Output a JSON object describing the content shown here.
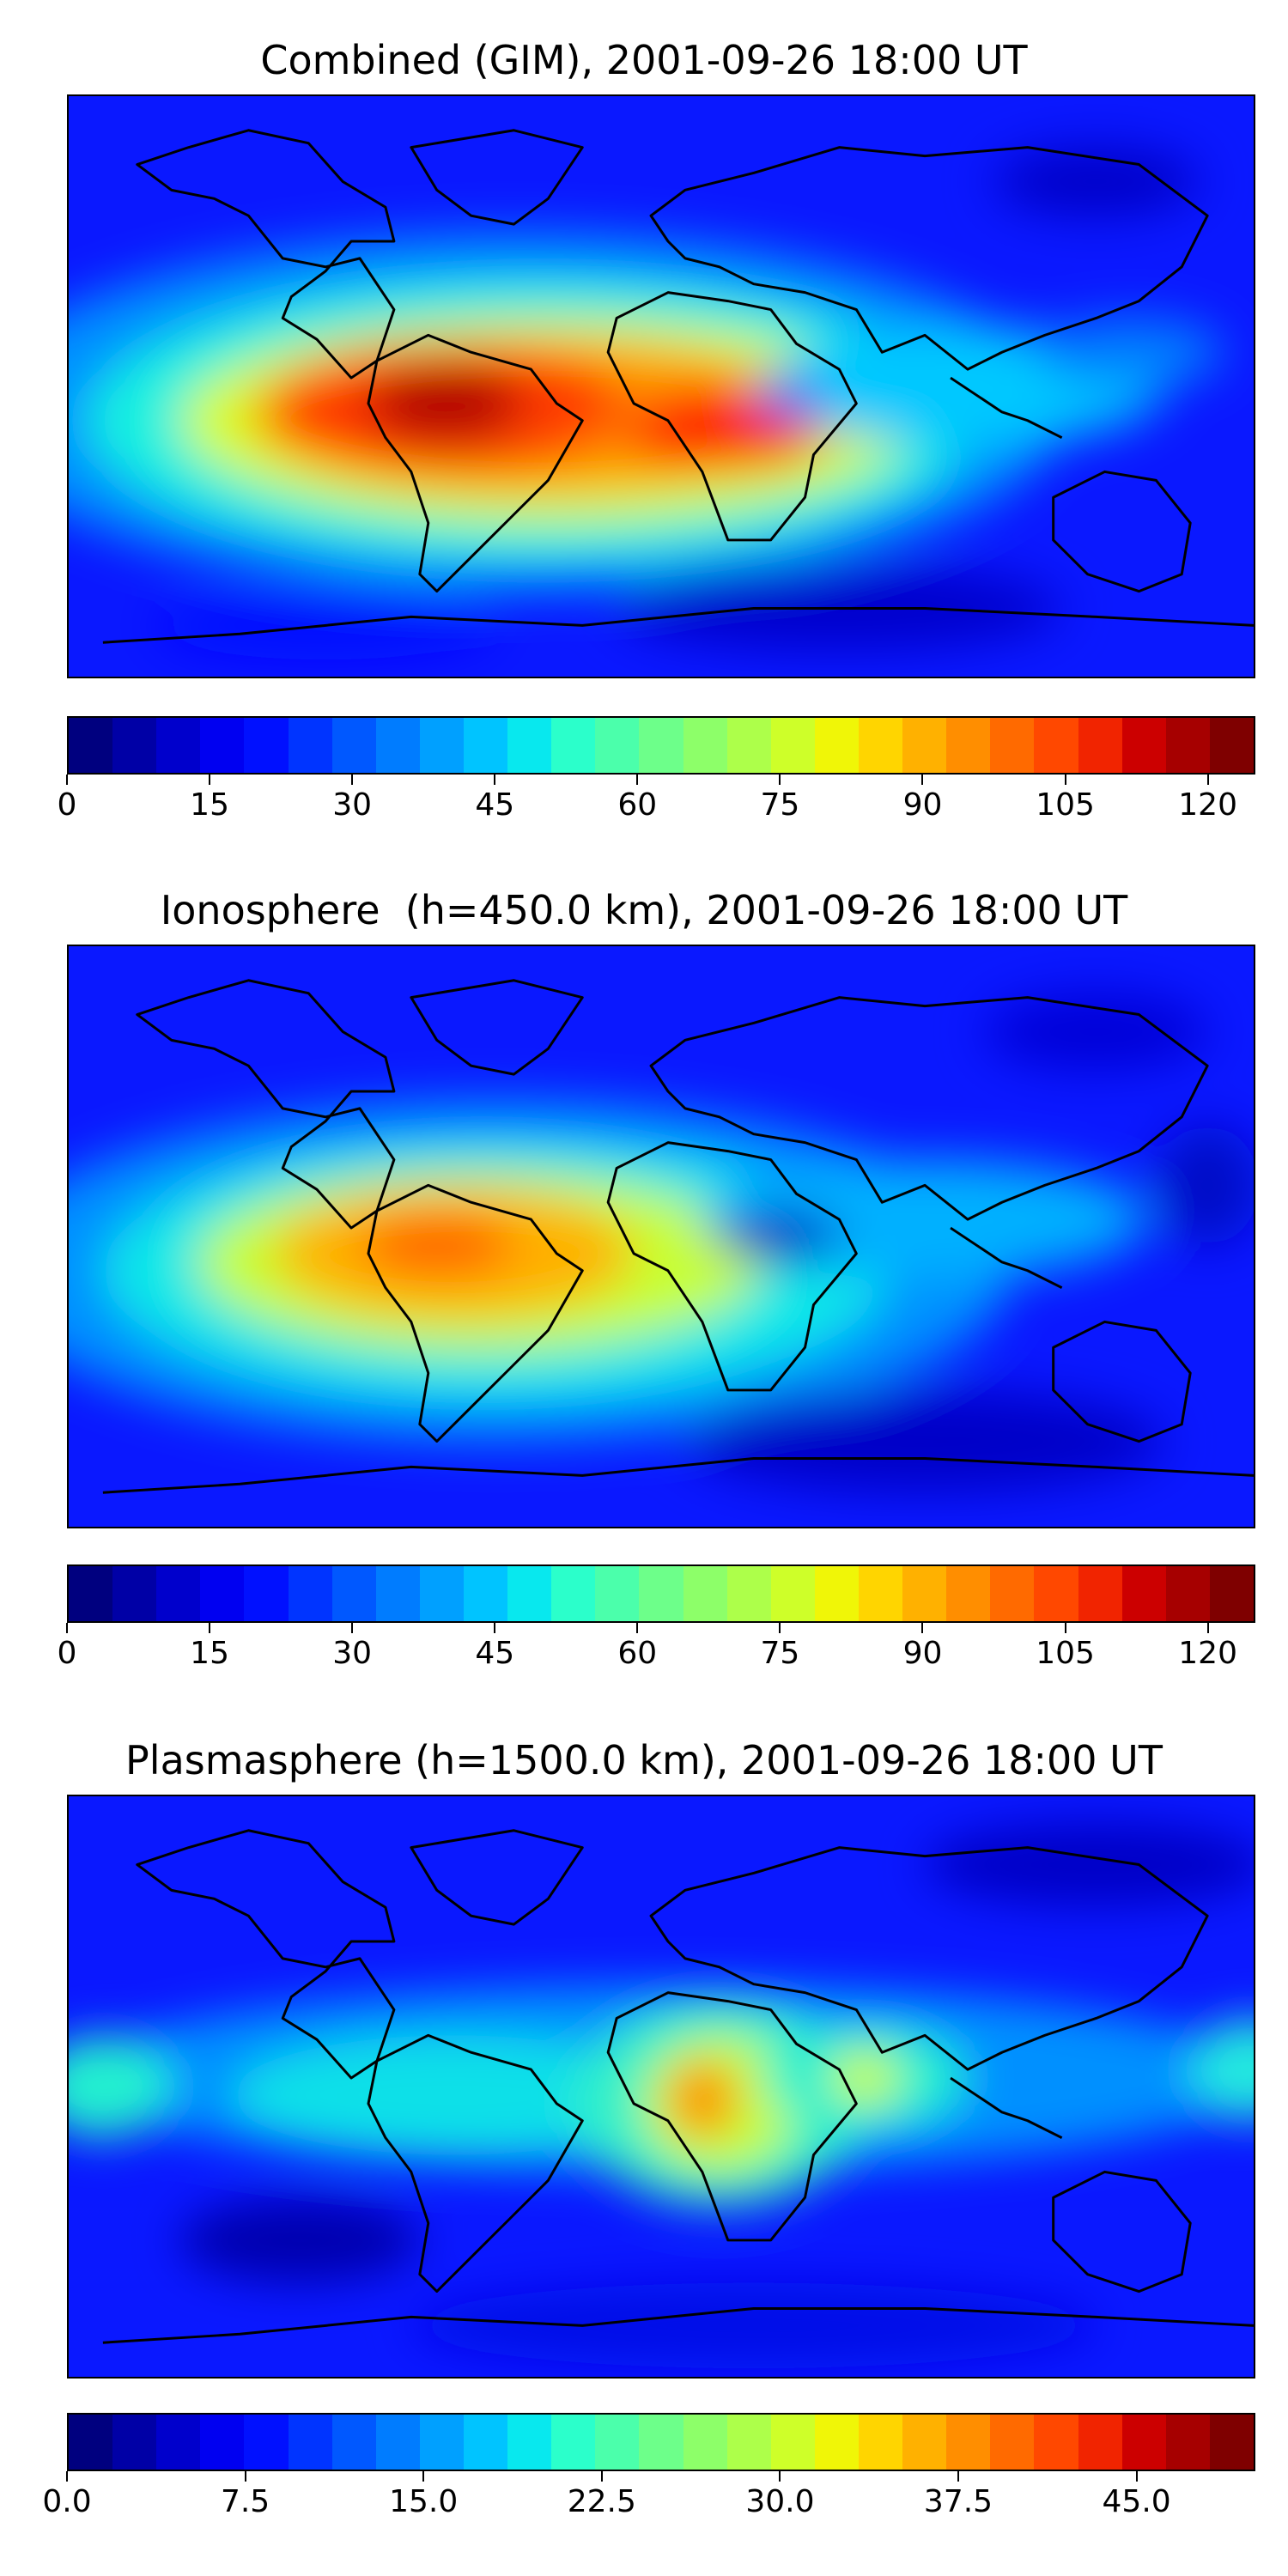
{
  "panels": [
    {
      "title": "Combined (GIM), 2001-09-26 18:00 UT",
      "colorbar": {
        "min": 0,
        "max": 125,
        "ticks": [
          0,
          15,
          30,
          45,
          60,
          75,
          90,
          105,
          120
        ],
        "tick_labels": [
          "0",
          "15",
          "30",
          "45",
          "60",
          "75",
          "90",
          "105",
          "120"
        ]
      }
    },
    {
      "title": "Ionosphere  (h=450.0 km), 2001-09-26 18:00 UT",
      "colorbar": {
        "min": 0,
        "max": 125,
        "ticks": [
          0,
          15,
          30,
          45,
          60,
          75,
          90,
          105,
          120
        ],
        "tick_labels": [
          "0",
          "15",
          "30",
          "45",
          "60",
          "75",
          "90",
          "105",
          "120"
        ]
      }
    },
    {
      "title": "Plasmasphere (h=1500.0 km), 2001-09-26 18:00 UT",
      "colorbar": {
        "min": 0,
        "max": 50,
        "ticks": [
          0,
          7.5,
          15,
          22.5,
          30,
          37.5,
          45
        ],
        "tick_labels": [
          "0.0",
          "7.5",
          "15.0",
          "22.5",
          "30.0",
          "37.5",
          "45.0"
        ]
      }
    }
  ],
  "colormap": [
    "#00007f",
    "#0000a6",
    "#0000cc",
    "#0000f1",
    "#0010ff",
    "#0034ff",
    "#0058ff",
    "#007cff",
    "#00a0ff",
    "#00c4ff",
    "#08e8ee",
    "#2bffcb",
    "#4bffab",
    "#6dff8a",
    "#8dff69",
    "#adff4a",
    "#ceff29",
    "#f0f607",
    "#ffd500",
    "#ffb100",
    "#ff8e00",
    "#ff6a00",
    "#ff4800",
    "#f12400",
    "#cc0000",
    "#a60000",
    "#7f0000"
  ]
}
